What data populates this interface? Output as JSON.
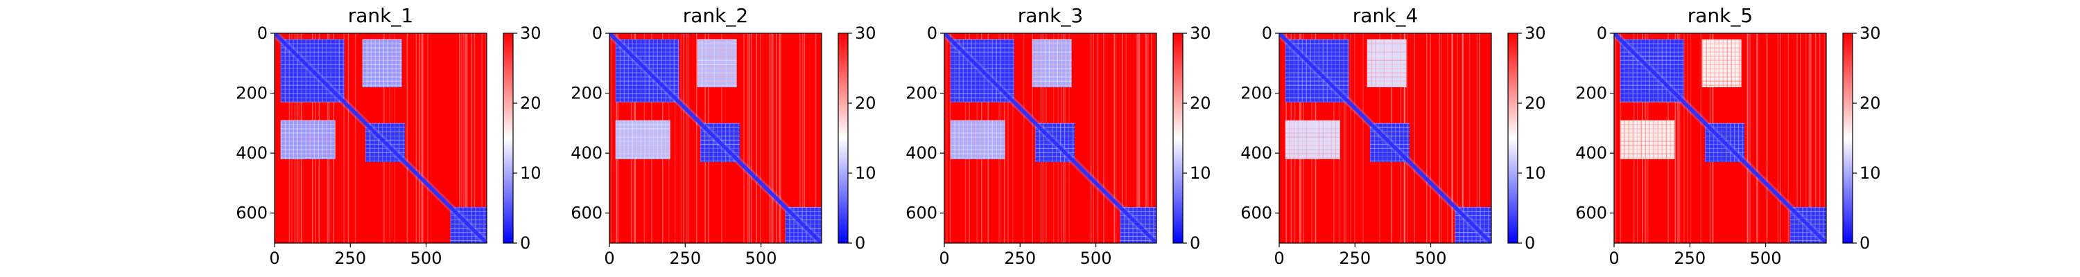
{
  "chart_data": [
    {
      "type": "heatmap",
      "title": "rank_1",
      "extent": [
        0,
        700
      ],
      "xticks": [
        0,
        250,
        500
      ],
      "yticks": [
        0,
        200,
        400,
        600
      ],
      "colorbar": {
        "ticks": [
          0,
          10,
          20,
          30
        ],
        "range": [
          0,
          30
        ],
        "colormap": "bwr"
      },
      "blocks": [
        {
          "x": [
            20,
            230
          ],
          "y": [
            20,
            230
          ],
          "mean_value": 3
        },
        {
          "x": [
            300,
            430
          ],
          "y": [
            300,
            430
          ],
          "mean_value": 3
        },
        {
          "x": [
            580,
            700
          ],
          "y": [
            580,
            700
          ],
          "mean_value": 3
        },
        {
          "x": [
            290,
            420
          ],
          "y": [
            20,
            180
          ],
          "mean_value": 9
        },
        {
          "x": [
            20,
            200
          ],
          "y": [
            290,
            420
          ],
          "mean_value": 9
        }
      ],
      "diagonal_value": 0,
      "background_value": 30
    },
    {
      "type": "heatmap",
      "title": "rank_2",
      "extent": [
        0,
        700
      ],
      "xticks": [
        0,
        250,
        500
      ],
      "yticks": [
        0,
        200,
        400,
        600
      ],
      "colorbar": {
        "ticks": [
          0,
          10,
          20,
          30
        ],
        "range": [
          0,
          30
        ],
        "colormap": "bwr"
      },
      "blocks": [
        {
          "x": [
            20,
            230
          ],
          "y": [
            20,
            230
          ],
          "mean_value": 3
        },
        {
          "x": [
            300,
            430
          ],
          "y": [
            300,
            430
          ],
          "mean_value": 3
        },
        {
          "x": [
            580,
            700
          ],
          "y": [
            580,
            700
          ],
          "mean_value": 3
        },
        {
          "x": [
            290,
            420
          ],
          "y": [
            20,
            180
          ],
          "mean_value": 11
        },
        {
          "x": [
            20,
            200
          ],
          "y": [
            290,
            420
          ],
          "mean_value": 11
        }
      ],
      "diagonal_value": 0,
      "background_value": 30
    },
    {
      "type": "heatmap",
      "title": "rank_3",
      "extent": [
        0,
        700
      ],
      "xticks": [
        0,
        250,
        500
      ],
      "yticks": [
        0,
        200,
        400,
        600
      ],
      "colorbar": {
        "ticks": [
          0,
          10,
          20,
          30
        ],
        "range": [
          0,
          30
        ],
        "colormap": "bwr"
      },
      "blocks": [
        {
          "x": [
            20,
            230
          ],
          "y": [
            20,
            230
          ],
          "mean_value": 3
        },
        {
          "x": [
            300,
            430
          ],
          "y": [
            300,
            430
          ],
          "mean_value": 3
        },
        {
          "x": [
            580,
            700
          ],
          "y": [
            580,
            700
          ],
          "mean_value": 3
        },
        {
          "x": [
            290,
            420
          ],
          "y": [
            20,
            180
          ],
          "mean_value": 10
        },
        {
          "x": [
            20,
            200
          ],
          "y": [
            290,
            420
          ],
          "mean_value": 10
        }
      ],
      "diagonal_value": 0,
      "background_value": 30
    },
    {
      "type": "heatmap",
      "title": "rank_4",
      "extent": [
        0,
        700
      ],
      "xticks": [
        0,
        250,
        500
      ],
      "yticks": [
        0,
        200,
        400,
        600
      ],
      "colorbar": {
        "ticks": [
          0,
          10,
          20,
          30
        ],
        "range": [
          0,
          30
        ],
        "colormap": "bwr"
      },
      "blocks": [
        {
          "x": [
            20,
            230
          ],
          "y": [
            20,
            230
          ],
          "mean_value": 3
        },
        {
          "x": [
            300,
            430
          ],
          "y": [
            300,
            430
          ],
          "mean_value": 3
        },
        {
          "x": [
            580,
            700
          ],
          "y": [
            580,
            700
          ],
          "mean_value": 3
        },
        {
          "x": [
            290,
            420
          ],
          "y": [
            20,
            180
          ],
          "mean_value": 13
        },
        {
          "x": [
            20,
            200
          ],
          "y": [
            290,
            420
          ],
          "mean_value": 13
        }
      ],
      "diagonal_value": 0,
      "background_value": 30
    },
    {
      "type": "heatmap",
      "title": "rank_5",
      "extent": [
        0,
        700
      ],
      "xticks": [
        0,
        250,
        500
      ],
      "yticks": [
        0,
        200,
        400,
        600
      ],
      "colorbar": {
        "ticks": [
          0,
          10,
          20,
          30
        ],
        "range": [
          0,
          30
        ],
        "colormap": "bwr"
      },
      "blocks": [
        {
          "x": [
            20,
            230
          ],
          "y": [
            20,
            230
          ],
          "mean_value": 3
        },
        {
          "x": [
            300,
            430
          ],
          "y": [
            300,
            430
          ],
          "mean_value": 3
        },
        {
          "x": [
            580,
            700
          ],
          "y": [
            580,
            700
          ],
          "mean_value": 3
        },
        {
          "x": [
            290,
            420
          ],
          "y": [
            20,
            180
          ],
          "mean_value": 16
        },
        {
          "x": [
            20,
            200
          ],
          "y": [
            290,
            420
          ],
          "mean_value": 16
        }
      ],
      "diagonal_value": 0,
      "background_value": 30
    }
  ]
}
